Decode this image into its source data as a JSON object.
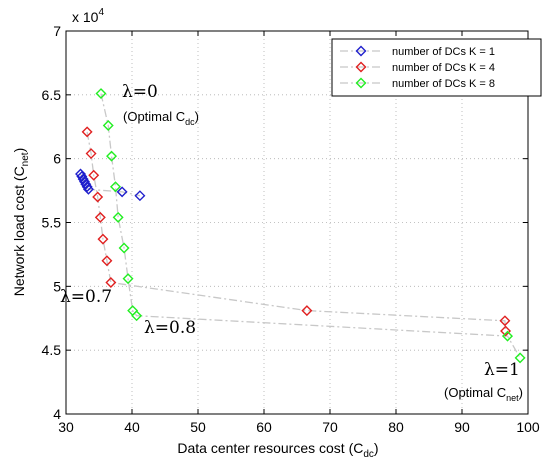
{
  "chart_data": {
    "type": "scatter",
    "x_label": "Data center resources cost",
    "x_label_sub": "dc",
    "y_label": "Network load cost",
    "y_label_sub": "net",
    "y_scale_text": "x 10",
    "y_scale_exp": "4",
    "xlim": [
      30,
      100
    ],
    "ylim": [
      40000,
      70000
    ],
    "x_ticks": [
      30,
      40,
      50,
      60,
      70,
      80,
      90,
      100
    ],
    "y_ticks": [
      40000,
      45000,
      50000,
      55000,
      60000,
      65000,
      70000
    ],
    "y_tick_labels": [
      "4",
      "4.5",
      "5",
      "5.5",
      "6",
      "6.5",
      "7"
    ],
    "legend_position": "top-right",
    "grid": true,
    "series": [
      {
        "name": "number of DCs K = 1",
        "color": "#1f1fcc",
        "points": [
          [
            32.2,
            58800
          ],
          [
            32.4,
            58600
          ],
          [
            32.6,
            58400
          ],
          [
            32.8,
            58200
          ],
          [
            33.0,
            58000
          ],
          [
            33.2,
            57800
          ],
          [
            33.4,
            57600
          ],
          [
            38.5,
            57400
          ],
          [
            41.2,
            57100
          ]
        ]
      },
      {
        "name": "number of DCs K = 4",
        "color": "#e02020",
        "points": [
          [
            33.2,
            62100
          ],
          [
            33.8,
            60400
          ],
          [
            34.2,
            58700
          ],
          [
            34.8,
            57000
          ],
          [
            35.2,
            55400
          ],
          [
            35.6,
            53700
          ],
          [
            36.2,
            52000
          ],
          [
            36.8,
            50300
          ],
          [
            66.5,
            48100
          ],
          [
            96.5,
            47300
          ],
          [
            96.6,
            46500
          ]
        ]
      },
      {
        "name": "number of DCs K = 8",
        "color": "#22ee22",
        "points": [
          [
            35.3,
            65100
          ],
          [
            36.4,
            62600
          ],
          [
            36.9,
            60200
          ],
          [
            37.5,
            57800
          ],
          [
            37.9,
            55400
          ],
          [
            38.8,
            53000
          ],
          [
            39.4,
            50600
          ],
          [
            40.1,
            48100
          ],
          [
            40.7,
            47700
          ],
          [
            96.9,
            46100
          ],
          [
            98.8,
            44400
          ]
        ]
      }
    ],
    "annotations": {
      "lambda0": "λ=0",
      "opt_cdc_text": "(Optimal C",
      "opt_cdc_sub": "dc",
      "opt_close": ")",
      "lambda07": "λ=0.7",
      "lambda08": "λ=0.8",
      "lambda1": "λ=1",
      "opt_cnet_text": "(Optimal C",
      "opt_cnet_sub": "net",
      "opt_close2": ")"
    }
  }
}
